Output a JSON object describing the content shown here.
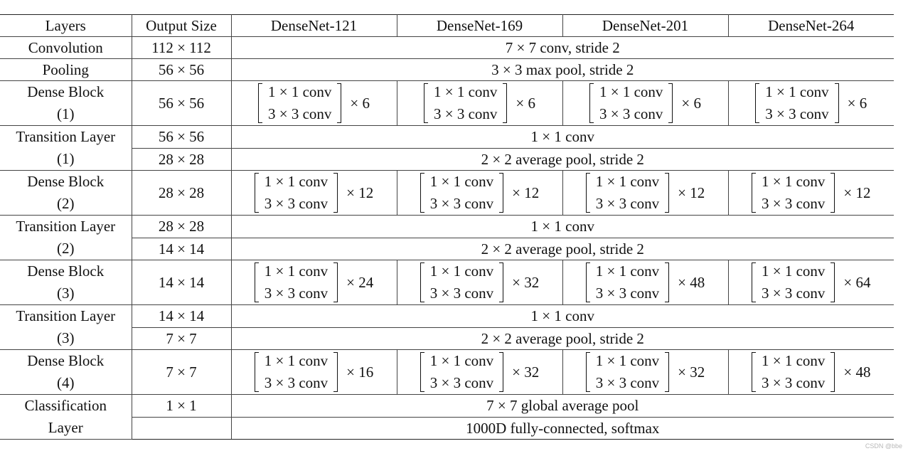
{
  "table": {
    "headers": [
      "Layers",
      "Output Size",
      "DenseNet-121",
      "DenseNet-169",
      "DenseNet-201",
      "DenseNet-264"
    ],
    "rows": [
      {
        "layer": [
          "Convolution"
        ],
        "outputs": [
          "112 × 112"
        ],
        "ops": [
          "7 × 7 conv, stride 2"
        ]
      },
      {
        "layer": [
          "Pooling"
        ],
        "outputs": [
          "56 × 56"
        ],
        "ops": [
          "3 × 3 max pool, stride 2"
        ]
      },
      {
        "layer": [
          "Dense Block",
          "(1)"
        ],
        "outputs": [
          "56 × 56"
        ],
        "block": {
          "line1": "1 × 1 conv",
          "line2": "3 × 3 conv",
          "multipliers": [
            "× 6",
            "× 6",
            "× 6",
            "× 6"
          ]
        }
      },
      {
        "layer": [
          "Transition Layer",
          "(1)"
        ],
        "outputs": [
          "56 × 56",
          "28 × 28"
        ],
        "ops": [
          "1 × 1 conv",
          "2 × 2 average pool, stride 2"
        ]
      },
      {
        "layer": [
          "Dense Block",
          "(2)"
        ],
        "outputs": [
          "28 × 28"
        ],
        "block": {
          "line1": "1 × 1 conv",
          "line2": "3 × 3 conv",
          "multipliers": [
            "× 12",
            "× 12",
            "× 12",
            "× 12"
          ]
        }
      },
      {
        "layer": [
          "Transition Layer",
          "(2)"
        ],
        "outputs": [
          "28 × 28",
          "14 × 14"
        ],
        "ops": [
          "1 × 1 conv",
          "2 × 2 average pool, stride 2"
        ]
      },
      {
        "layer": [
          "Dense Block",
          "(3)"
        ],
        "outputs": [
          "14 × 14"
        ],
        "block": {
          "line1": "1 × 1 conv",
          "line2": "3 × 3 conv",
          "multipliers": [
            "× 24",
            "× 32",
            "× 48",
            "× 64"
          ]
        }
      },
      {
        "layer": [
          "Transition Layer",
          "(3)"
        ],
        "outputs": [
          "14 × 14",
          "7 × 7"
        ],
        "ops": [
          "1 × 1 conv",
          "2 × 2 average pool, stride 2"
        ]
      },
      {
        "layer": [
          "Dense Block",
          "(4)"
        ],
        "outputs": [
          "7 × 7"
        ],
        "block": {
          "line1": "1 × 1 conv",
          "line2": "3 × 3 conv",
          "multipliers": [
            "× 16",
            "× 32",
            "× 32",
            "× 48"
          ]
        }
      },
      {
        "layer": [
          "Classification",
          "Layer"
        ],
        "outputs": [
          "1 × 1",
          ""
        ],
        "ops": [
          "7 × 7 global average pool",
          "1000D fully-connected, softmax"
        ]
      }
    ]
  },
  "watermark": "CSDN @bbe"
}
